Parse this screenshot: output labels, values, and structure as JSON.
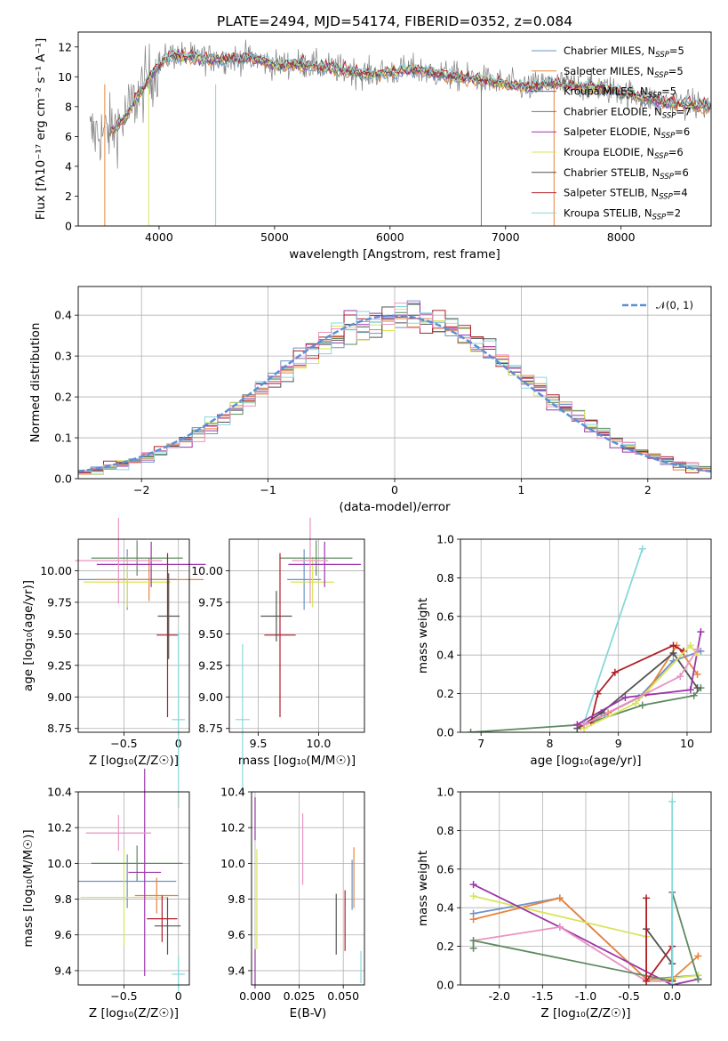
{
  "title": "PLATE=2494, MJD=54174, FIBERID=0352, z=0.084",
  "colors": {
    "observed": "#808080",
    "series": [
      "#6d93c7",
      "#e8843a",
      "#6a6a6a",
      "#5e8a61",
      "#9b36a8",
      "#d8e45a",
      "#535353",
      "#b0202a",
      "#86d8dd",
      "#e993c3"
    ],
    "normal_curve": "#5b8fd6"
  },
  "legend_spectrum": [
    {
      "label": "Chabrier MILES, N",
      "sub": "SSP",
      "suffix": "=5",
      "color": "#6d93c7"
    },
    {
      "label": "Salpeter MILES, N",
      "sub": "SSP",
      "suffix": "=5",
      "color": "#e8843a"
    },
    {
      "label": "Kroupa MILES, N",
      "sub": "SSP",
      "suffix": "=5",
      "color": "#6a6a6a"
    },
    {
      "label": "Chabrier ELODIE, N",
      "sub": "SSP",
      "suffix": "=7",
      "color": "#5e8a61"
    },
    {
      "label": "Salpeter ELODIE, N",
      "sub": "SSP",
      "suffix": "=6",
      "color": "#9b36a8"
    },
    {
      "label": "Kroupa ELODIE, N",
      "sub": "SSP",
      "suffix": "=6",
      "color": "#d8e45a"
    },
    {
      "label": "Chabrier STELIB, N",
      "sub": "SSP",
      "suffix": "=6",
      "color": "#535353"
    },
    {
      "label": "Salpeter STELIB, N",
      "sub": "SSP",
      "suffix": "=4",
      "color": "#b0202a"
    },
    {
      "label": "Kroupa STELIB, N",
      "sub": "SSP",
      "suffix": "=2",
      "color": "#86d8dd"
    }
  ],
  "legend_hist": {
    "label": "𝒩(0, 1)"
  },
  "chart_data": [
    {
      "type": "line",
      "title": "PLATE=2494, MJD=54174, FIBERID=0352, z=0.084",
      "xlabel": "wavelength [Angstrom, rest frame]",
      "ylabel": "Flux [fλ10⁻¹⁷ erg cm⁻² s⁻¹ A⁻¹]",
      "xlim": [
        3300,
        8780
      ],
      "ylim": [
        0,
        13
      ],
      "xticks": [
        4000,
        5000,
        6000,
        7000,
        8000
      ],
      "yticks": [
        0,
        2,
        4,
        6,
        8,
        10,
        12
      ],
      "continuum": {
        "x": [
          3500,
          3600,
          3700,
          3800,
          3900,
          4000,
          4100,
          4300,
          4500,
          4800,
          5000,
          5200,
          5500,
          5800,
          6000,
          6200,
          6500,
          6800,
          7000,
          7200,
          7400,
          7600,
          7800,
          8000,
          8200,
          8400,
          8780
        ],
        "y": [
          6.2,
          6.5,
          7.2,
          8.5,
          9.8,
          10.8,
          11.5,
          11.3,
          11.2,
          11.3,
          10.8,
          10.9,
          10.6,
          10.2,
          10.3,
          10.5,
          10.1,
          9.8,
          9.5,
          9.3,
          9.6,
          9.4,
          9.3,
          9.0,
          8.6,
          8.3,
          8.0
        ]
      }
    },
    {
      "type": "bar",
      "xlabel": "(data-model)/error",
      "ylabel": "Normed distribution",
      "xlim": [
        -2.5,
        2.5
      ],
      "ylim": [
        0,
        0.47
      ],
      "xticks": [
        -2,
        -1,
        0,
        1,
        2
      ],
      "yticks": [
        0.0,
        0.1,
        0.2,
        0.3,
        0.4
      ],
      "bin_edges": [
        -2.5,
        -2.4,
        -2.3,
        -2.2,
        -2.1,
        -2.0,
        -1.9,
        -1.8,
        -1.7,
        -1.6,
        -1.5,
        -1.4,
        -1.3,
        -1.2,
        -1.1,
        -1.0,
        -0.9,
        -0.8,
        -0.7,
        -0.6,
        -0.5,
        -0.4,
        -0.3,
        -0.2,
        -0.1,
        0.0,
        0.1,
        0.2,
        0.3,
        0.4,
        0.5,
        0.6,
        0.7,
        0.8,
        0.9,
        1.0,
        1.1,
        1.2,
        1.3,
        1.4,
        1.5,
        1.6,
        1.7,
        1.8,
        1.9,
        2.0,
        2.1,
        2.2,
        2.3,
        2.4,
        2.5
      ],
      "normal_curve": {
        "mean": 0,
        "sigma": 1
      }
    },
    {
      "type": "scatter",
      "xlabel": "Z [log₁₀(Z/Z☉)]",
      "ylabel": "age  [log₁₀(age/yr)]",
      "xlim": [
        -0.92,
        0.1
      ],
      "ylim": [
        8.72,
        10.25
      ],
      "xticks": [
        -0.5,
        0.0
      ],
      "yticks": [
        8.75,
        9.0,
        9.25,
        9.5,
        9.75,
        10.0
      ],
      "points": [
        {
          "x": -0.47,
          "y": 9.93,
          "xerr": 0.45,
          "yerr": 0.24,
          "c": 0
        },
        {
          "x": -0.27,
          "y": 9.93,
          "xerr": 0.5,
          "yerr": 0.17,
          "c": 1
        },
        {
          "x": -0.47,
          "y": 9.91,
          "xerr": 0.4,
          "yerr": 0.2,
          "c": 5
        },
        {
          "x": -0.38,
          "y": 10.1,
          "xerr": 0.42,
          "yerr": 0.14,
          "c": 3
        },
        {
          "x": -0.25,
          "y": 10.05,
          "xerr": 0.5,
          "yerr": 0.18,
          "c": 4
        },
        {
          "x": -0.55,
          "y": 10.08,
          "xerr": 0.4,
          "yerr": 0.34,
          "c": 9
        },
        {
          "x": -0.09,
          "y": 9.64,
          "xerr": 0.1,
          "yerr": 0.34,
          "c": 6
        },
        {
          "x": -0.1,
          "y": 9.49,
          "xerr": 0.1,
          "yerr": 0.65,
          "c": 7
        },
        {
          "x": 0.0,
          "y": 8.82,
          "xerr": 0.06,
          "yerr": 0.7,
          "c": 8
        }
      ]
    },
    {
      "type": "scatter",
      "xlabel": "mass [log₁₀(M/M☉)]",
      "ylabel": "",
      "xlim": [
        9.26,
        10.38
      ],
      "ylim": [
        8.72,
        10.25
      ],
      "xticks": [
        9.5,
        10.0
      ],
      "yticks": [
        8.75,
        9.0,
        9.25,
        9.5,
        9.75,
        10.0
      ],
      "points": [
        {
          "x": 9.88,
          "y": 9.93,
          "xerr": 0.14,
          "yerr": 0.24,
          "c": 0
        },
        {
          "x": 9.95,
          "y": 9.91,
          "xerr": 0.18,
          "yerr": 0.2,
          "c": 5
        },
        {
          "x": 9.98,
          "y": 10.1,
          "xerr": 0.3,
          "yerr": 0.14,
          "c": 3
        },
        {
          "x": 10.05,
          "y": 10.05,
          "xerr": 0.3,
          "yerr": 0.18,
          "c": 4
        },
        {
          "x": 9.93,
          "y": 10.08,
          "xerr": 0.15,
          "yerr": 0.34,
          "c": 9
        },
        {
          "x": 9.65,
          "y": 9.64,
          "xerr": 0.13,
          "yerr": 0.2,
          "c": 6
        },
        {
          "x": 9.68,
          "y": 9.49,
          "xerr": 0.13,
          "yerr": 0.65,
          "c": 7
        },
        {
          "x": 9.37,
          "y": 8.82,
          "xerr": 0.06,
          "yerr": 0.6,
          "c": 8
        }
      ]
    },
    {
      "type": "line",
      "xlabel": "age  [log₁₀(age/yr)]",
      "ylabel": "mass weight",
      "xlim": [
        6.7,
        10.35
      ],
      "ylim": [
        0,
        1.0
      ],
      "xticks": [
        7,
        8,
        9,
        10
      ],
      "yticks": [
        0.0,
        0.2,
        0.4,
        0.6,
        0.8,
        1.0
      ],
      "series": [
        {
          "c": 3,
          "x": [
            6.85,
            8.5,
            9.35,
            10.1,
            10.2
          ],
          "y": [
            0.0,
            0.04,
            0.14,
            0.19,
            0.23
          ]
        },
        {
          "c": 0,
          "x": [
            8.4,
            8.8,
            9.3,
            9.8,
            10.2
          ],
          "y": [
            0.02,
            0.09,
            0.18,
            0.37,
            0.42
          ]
        },
        {
          "c": 1,
          "x": [
            8.45,
            8.85,
            9.4,
            9.85,
            10.15
          ],
          "y": [
            0.03,
            0.1,
            0.2,
            0.45,
            0.3
          ]
        },
        {
          "c": 6,
          "x": [
            8.4,
            8.75,
            9.8,
            10.15
          ],
          "y": [
            0.02,
            0.1,
            0.41,
            0.23
          ]
        },
        {
          "c": 7,
          "x": [
            8.6,
            8.7,
            8.95,
            9.8,
            9.95
          ],
          "y": [
            0.05,
            0.2,
            0.31,
            0.45,
            0.42
          ]
        },
        {
          "c": 8,
          "x": [
            8.5,
            9.35
          ],
          "y": [
            0.05,
            0.95
          ]
        },
        {
          "c": 4,
          "x": [
            8.4,
            9.1,
            10.05,
            10.2
          ],
          "y": [
            0.04,
            0.18,
            0.22,
            0.52
          ]
        },
        {
          "c": 5,
          "x": [
            8.5,
            9.25,
            10.05,
            10.15
          ],
          "y": [
            0.02,
            0.15,
            0.45,
            0.4
          ]
        },
        {
          "c": 9,
          "x": [
            8.5,
            9.9,
            10.15
          ],
          "y": [
            0.04,
            0.29,
            0.43
          ]
        }
      ]
    },
    {
      "type": "scatter",
      "xlabel": "Z [log₁₀(Z/Z☉)]",
      "ylabel": "mass [log₁₀(M/M☉)]",
      "xlim": [
        -0.92,
        0.1
      ],
      "ylim": [
        9.32,
        10.4
      ],
      "xticks": [
        -0.5,
        0.0
      ],
      "yticks": [
        9.4,
        9.6,
        9.8,
        10.0,
        10.2,
        10.4
      ],
      "points": [
        {
          "x": -0.47,
          "y": 9.9,
          "xerr": 0.45,
          "yerr": 0.15,
          "c": 0
        },
        {
          "x": -0.2,
          "y": 9.82,
          "xerr": 0.2,
          "yerr": 0.1,
          "c": 1
        },
        {
          "x": -0.5,
          "y": 9.81,
          "xerr": 0.4,
          "yerr": 0.27,
          "c": 5
        },
        {
          "x": -0.38,
          "y": 10.0,
          "xerr": 0.42,
          "yerr": 0.1,
          "c": 3
        },
        {
          "x": -0.31,
          "y": 9.95,
          "xerr": 0.15,
          "yerr": 0.58,
          "c": 4
        },
        {
          "x": -0.55,
          "y": 10.17,
          "xerr": 0.3,
          "yerr": 0.1,
          "c": 9
        },
        {
          "x": -0.1,
          "y": 9.65,
          "xerr": 0.12,
          "yerr": 0.16,
          "c": 6
        },
        {
          "x": -0.15,
          "y": 9.69,
          "xerr": 0.14,
          "yerr": 0.13,
          "c": 7
        },
        {
          "x": 0.0,
          "y": 9.38,
          "xerr": 0.06,
          "yerr": 0.1,
          "c": 8
        }
      ]
    },
    {
      "type": "scatter",
      "xlabel": "E(B-V)",
      "ylabel": "",
      "xlim": [
        -0.002,
        0.062
      ],
      "ylim": [
        9.32,
        10.4
      ],
      "xticks": [
        0.0,
        0.025,
        0.05
      ],
      "yticks": [
        9.4,
        9.6,
        9.8,
        10.0,
        10.2,
        10.4
      ],
      "points": [
        {
          "x": 0.0,
          "y": 9.41,
          "yerr": 0.11,
          "c": 4
        },
        {
          "x": 0.0,
          "y": 10.25,
          "yerr": 0.12,
          "c": 4
        },
        {
          "x": 0.001,
          "y": 9.8,
          "yerr": 0.28,
          "c": 5
        },
        {
          "x": 0.027,
          "y": 10.08,
          "yerr": 0.2,
          "c": 9
        },
        {
          "x": 0.046,
          "y": 9.66,
          "yerr": 0.17,
          "c": 6
        },
        {
          "x": 0.051,
          "y": 9.68,
          "yerr": 0.17,
          "c": 7
        },
        {
          "x": 0.055,
          "y": 9.88,
          "yerr": 0.14,
          "c": 0
        },
        {
          "x": 0.056,
          "y": 9.92,
          "yerr": 0.17,
          "c": 1
        },
        {
          "x": 0.06,
          "y": 9.42,
          "yerr": 0.09,
          "c": 8
        }
      ]
    },
    {
      "type": "line",
      "xlabel": "Z [log₁₀(Z/Z☉)]",
      "ylabel": "mass weight",
      "xlim": [
        -2.45,
        0.45
      ],
      "ylim": [
        0,
        1.0
      ],
      "xticks": [
        -2.0,
        -1.5,
        -1.0,
        -0.5,
        0.0
      ],
      "yticks": [
        0.0,
        0.2,
        0.4,
        0.6,
        0.8,
        1.0
      ],
      "series": [
        {
          "c": 0,
          "x": [
            -2.3,
            -1.3,
            -0.3,
            0.3
          ],
          "y": [
            0.37,
            0.45,
            0.03,
            0.05
          ]
        },
        {
          "c": 1,
          "x": [
            -2.3,
            -1.3,
            -0.3,
            0.0,
            0.3
          ],
          "y": [
            0.34,
            0.45,
            0.03,
            0.03,
            0.15
          ]
        },
        {
          "c": 5,
          "x": [
            -2.3,
            -0.3,
            -0.3,
            0.3
          ],
          "y": [
            0.46,
            0.25,
            0.02,
            0.05
          ]
        },
        {
          "c": 4,
          "x": [
            -2.3,
            -1.3,
            0.0,
            0.3
          ],
          "y": [
            0.52,
            0.3,
            0.0,
            0.03
          ]
        },
        {
          "c": 9,
          "x": [
            -2.3,
            -1.3,
            -0.3,
            0.0
          ],
          "y": [
            0.23,
            0.3,
            0.02,
            0.02
          ]
        },
        {
          "c": 3,
          "x": [
            -2.3,
            -2.3,
            0.0,
            0.0,
            0.3
          ],
          "y": [
            0.19,
            0.23,
            0.02,
            0.48,
            0.03
          ]
        },
        {
          "c": 6,
          "x": [
            -0.3,
            0.0,
            0.0
          ],
          "y": [
            0.29,
            0.11,
            0.02
          ]
        },
        {
          "c": 7,
          "x": [
            -0.3,
            -0.3,
            0.0,
            0.0
          ],
          "y": [
            0.45,
            0.02,
            0.2,
            0.02
          ]
        },
        {
          "c": 8,
          "x": [
            0.0,
            0.0
          ],
          "y": [
            0.95,
            0.0
          ]
        }
      ]
    }
  ]
}
